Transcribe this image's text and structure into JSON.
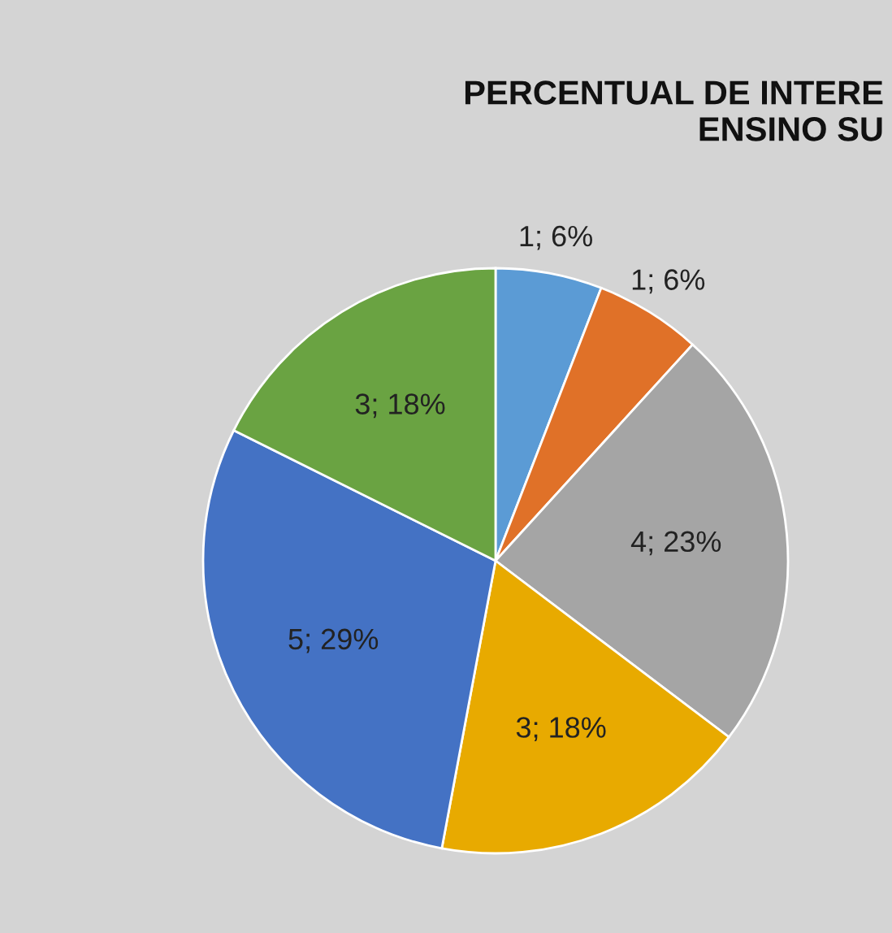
{
  "chart_data": {
    "type": "pie",
    "title": "PERCENTUAL DE INTERE\nENSINO SU",
    "categories": [
      null,
      null,
      null,
      null,
      null,
      null
    ],
    "values": [
      1,
      1,
      4,
      3,
      5,
      3
    ],
    "colors": [
      "#5b9bd5",
      "#e07128",
      "#a5a5a5",
      "#e8aa00",
      "#4472c4",
      "#6aa342"
    ],
    "value_labels": [
      "1; 6%",
      "1; 6%",
      "4; 23%",
      "3; 18%",
      "5; 29%",
      "3; 18%"
    ]
  }
}
